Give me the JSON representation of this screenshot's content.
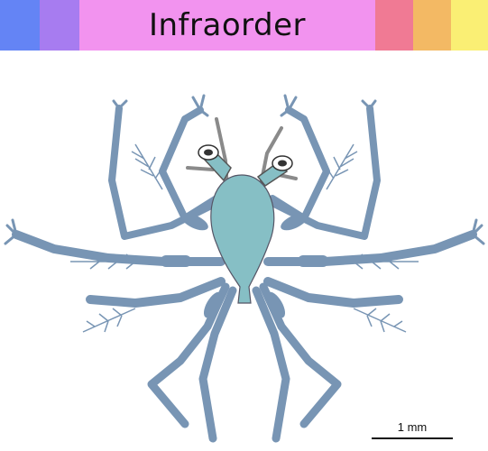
{
  "header": {
    "title": "Infraorder",
    "title_bg": "#f293ef",
    "left_colors": [
      "#6484f5",
      "#a77cf0"
    ],
    "right_colors": [
      "#f07a94",
      "#f3b964",
      "#faef74"
    ]
  },
  "illustration": {
    "subject": "sea-spider",
    "body_color": "#86bfc5",
    "leg_color": "#7895b4",
    "antenna_color": "#8a8a8a"
  },
  "scale_bar": {
    "label": "1 mm"
  }
}
